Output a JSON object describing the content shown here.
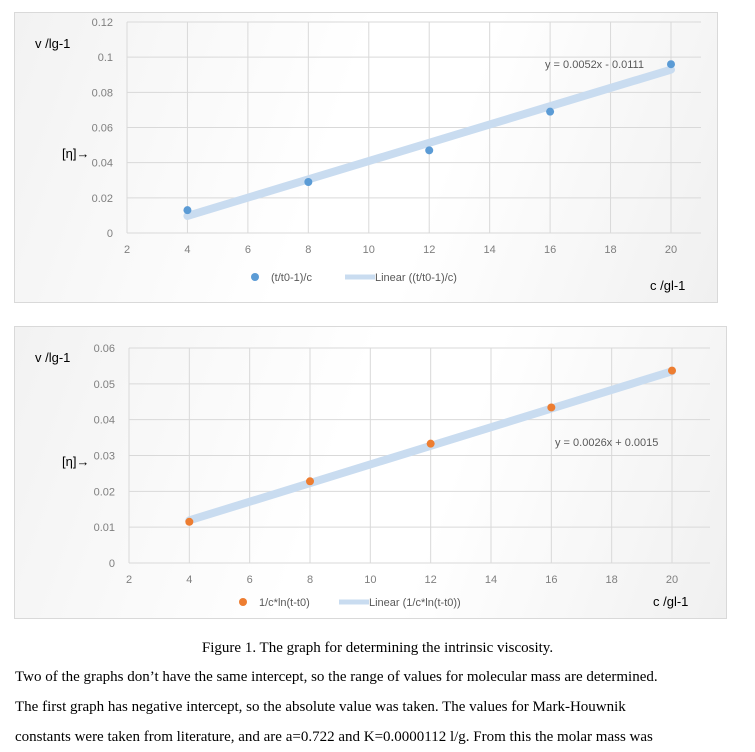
{
  "chart_data": [
    {
      "type": "scatter",
      "title": "",
      "ylabel": "v /lg-1",
      "ylabel_marker": "[η]→",
      "xlabel": "c /gl-1",
      "xlim": [
        2,
        20
      ],
      "ylim": [
        0,
        0.12
      ],
      "xticks": [
        2,
        4,
        6,
        8,
        10,
        12,
        14,
        16,
        18,
        20
      ],
      "yticks": [
        "0",
        "0.02",
        "0.04",
        "0.06",
        "0.08",
        "0.1",
        "0.12"
      ],
      "grid": true,
      "series": [
        {
          "name": "(t/t0-1)/c",
          "color": "#5b9bd5",
          "x": [
            4,
            8,
            12,
            16,
            20
          ],
          "y": [
            0.013,
            0.029,
            0.047,
            0.069,
            0.096
          ]
        }
      ],
      "trendline": {
        "name": "Linear ((t/t0-1)/c)",
        "slope": 0.0052,
        "intercept": -0.0111,
        "color": "#c9dcf0",
        "equation": "y = 0.0052x - 0.0111"
      },
      "legend": "bottom"
    },
    {
      "type": "scatter",
      "title": "",
      "ylabel": "v /lg-1",
      "ylabel_marker": "[η]→",
      "xlabel": "c /gl-1",
      "xlim": [
        2,
        20
      ],
      "ylim": [
        0,
        0.06
      ],
      "xticks": [
        2,
        4,
        6,
        8,
        10,
        12,
        14,
        16,
        18,
        20
      ],
      "yticks": [
        "0",
        "0.01",
        "0.02",
        "0.03",
        "0.04",
        "0.05",
        "0.06"
      ],
      "grid": true,
      "series": [
        {
          "name": "1/c*ln(t-t0)",
          "color": "#ed7d31",
          "x": [
            4,
            8,
            12,
            16,
            20
          ],
          "y": [
            0.0115,
            0.0228,
            0.0333,
            0.0434,
            0.0537
          ]
        }
      ],
      "trendline": {
        "name": "Linear (1/c*ln(t-t0))",
        "slope": 0.0026,
        "intercept": 0.0015,
        "color": "#c9dcf0",
        "equation": "y = 0.0026x + 0.0015"
      },
      "legend": "bottom"
    }
  ],
  "caption": "Figure 1. The graph for determining the intrinsic viscosity.",
  "paragraph": [
    "Two of the graphs don’t have the same intercept, so the range of values for molecular mass are determined.",
    "The first graph has negative intercept, so the absolute value was taken. The values for Mark-Houwnik",
    "constants were taken from literature, and are a=0.722 and K=0.0000112 l/g.  From this the molar mass was"
  ]
}
